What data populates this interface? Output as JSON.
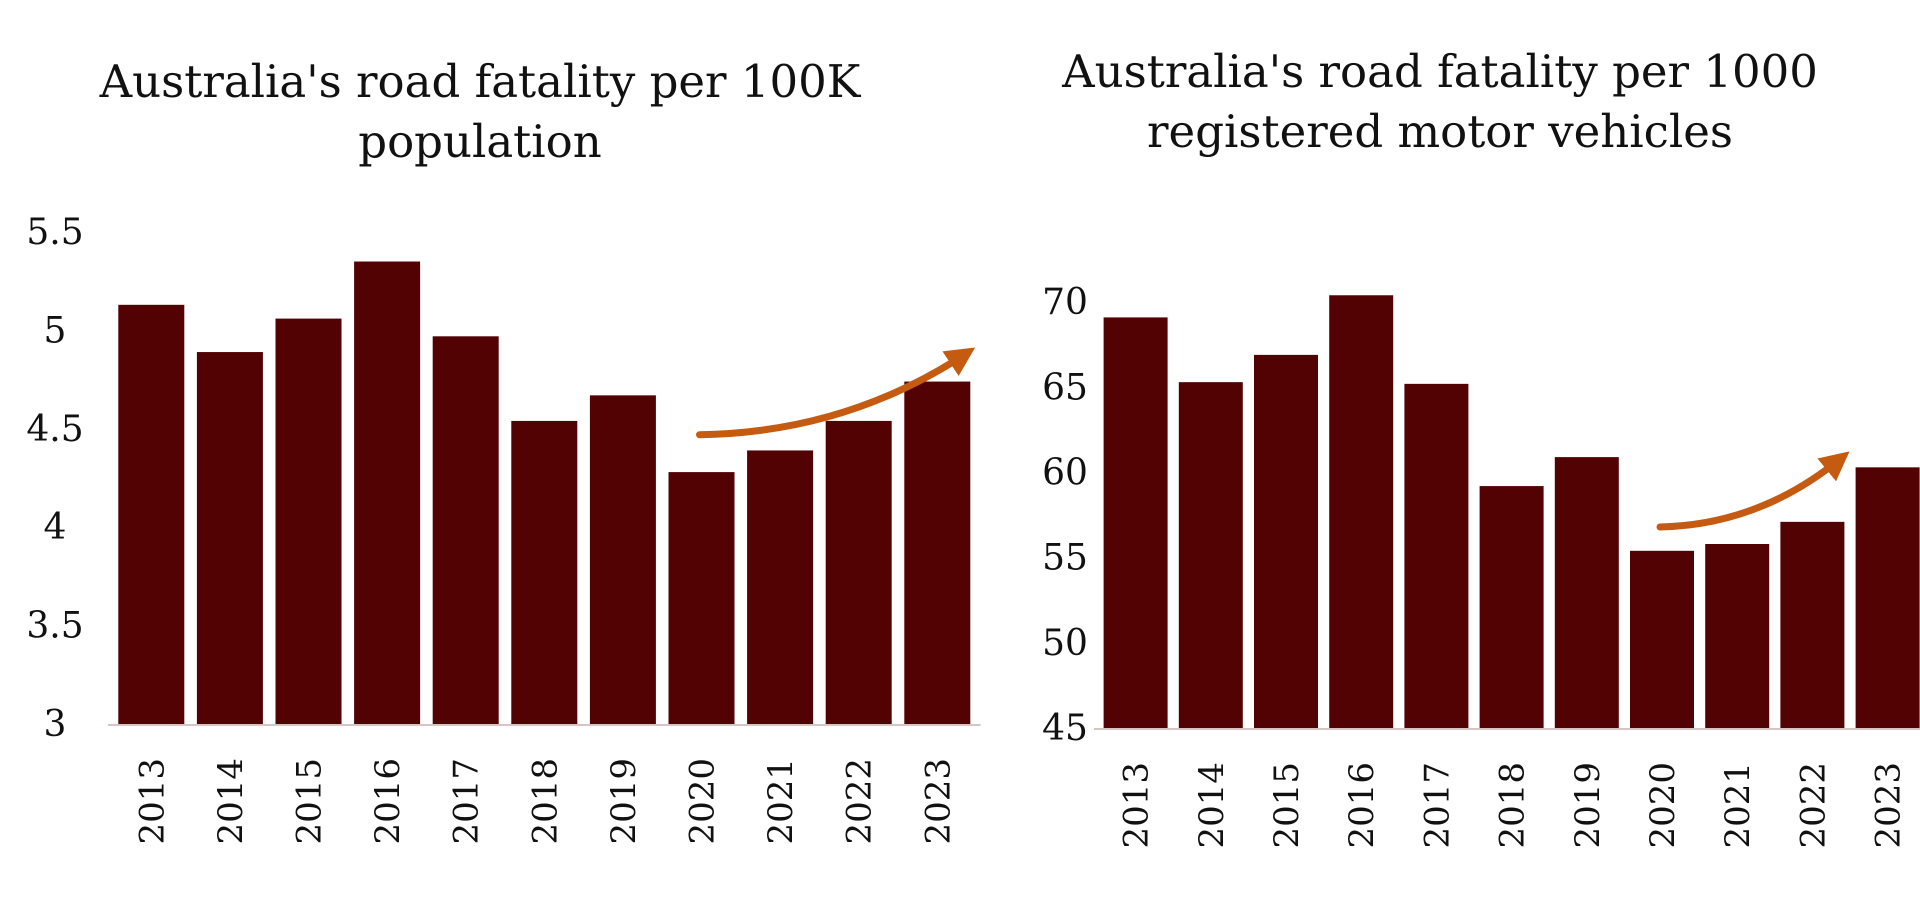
{
  "colors": {
    "bar": "#520203",
    "arrow": "#C55A11",
    "axis": "#d9c4c4"
  },
  "chart_data": [
    {
      "type": "bar",
      "title": "Australia's road fatality per 100K\npopulation",
      "xlabel": "",
      "ylabel": "",
      "categories": [
        "2013",
        "2014",
        "2015",
        "2016",
        "2017",
        "2018",
        "2019",
        "2020",
        "2021",
        "2022",
        "2023"
      ],
      "values": [
        5.13,
        4.89,
        5.06,
        5.35,
        4.97,
        4.54,
        4.67,
        4.28,
        4.39,
        4.54,
        4.74
      ],
      "ylim": [
        3,
        5.5
      ],
      "yticks": [
        "3",
        "3.5",
        "4",
        "4.5",
        "5",
        "5.5"
      ],
      "ytick_values": [
        3,
        3.5,
        4,
        4.5,
        5,
        5.5
      ],
      "annotation": {
        "type": "trend-arrow",
        "from_category": "2020",
        "to_category": "2023",
        "from_value": 4.47,
        "to_value": 4.88
      }
    },
    {
      "type": "bar",
      "title": "Australia's road fatality per 1000\nregistered motor vehicles",
      "xlabel": "",
      "ylabel": "",
      "categories": [
        "2013",
        "2014",
        "2015",
        "2016",
        "2017",
        "2018",
        "2019",
        "2020",
        "2021",
        "2022",
        "2023"
      ],
      "values": [
        69.1,
        65.3,
        66.9,
        70.4,
        65.2,
        59.2,
        60.9,
        55.4,
        55.8,
        57.1,
        60.3
      ],
      "ylim": [
        45,
        72
      ],
      "yticks": [
        "45",
        "50",
        "55",
        "60",
        "65",
        "70"
      ],
      "ytick_values": [
        45,
        50,
        55,
        60,
        65,
        70
      ],
      "annotation": {
        "type": "trend-arrow",
        "from_category": "2020",
        "to_category": "2022",
        "from_value": 56.8,
        "to_value": 60.8
      }
    }
  ]
}
